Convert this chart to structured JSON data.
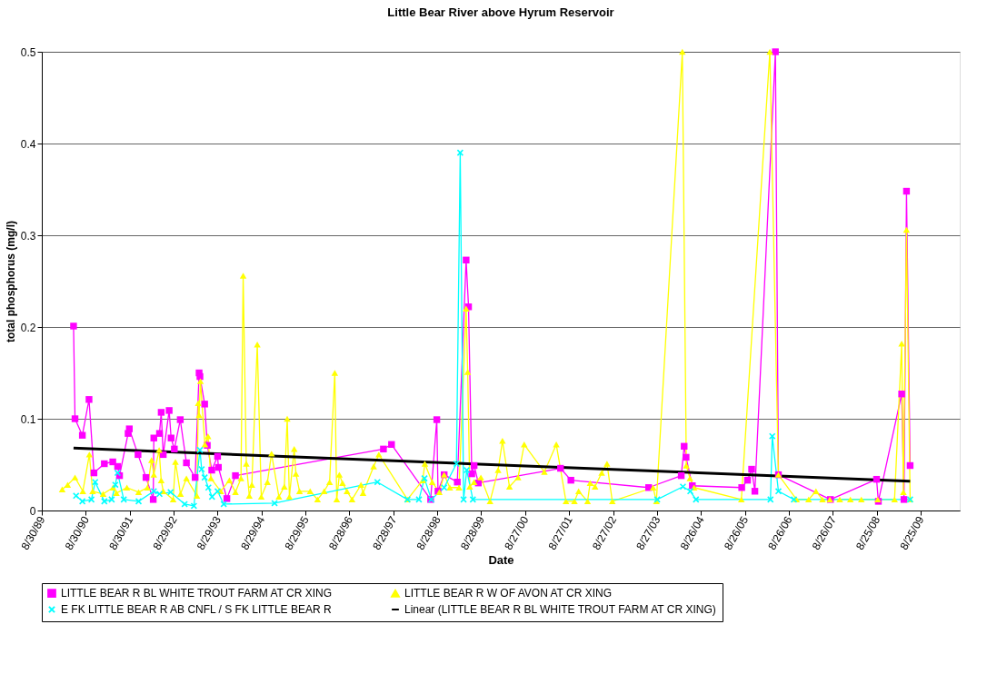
{
  "chart_data": {
    "type": "line",
    "title": "Little Bear River above Hyrum Reservoir",
    "xlabel": "Date",
    "ylabel": "total phosphorus (mg/l)",
    "xlim": [
      "1989-08-30",
      "2010-06-25"
    ],
    "xticks": [
      {
        "value": "1989-08-30",
        "label": "8/30/89"
      },
      {
        "value": "1990-08-29",
        "label": "8/30/90"
      },
      {
        "value": "1991-08-28",
        "label": "8/30/91"
      },
      {
        "value": "1992-08-26",
        "label": "8/29/92"
      },
      {
        "value": "1993-08-25",
        "label": "8/29/93"
      },
      {
        "value": "1994-08-24",
        "label": "8/29/94"
      },
      {
        "value": "1995-08-23",
        "label": "8/29/95"
      },
      {
        "value": "1996-08-21",
        "label": "8/28/96"
      },
      {
        "value": "1997-08-20",
        "label": "8/28/97"
      },
      {
        "value": "1998-08-19",
        "label": "8/28/98"
      },
      {
        "value": "1999-08-18",
        "label": "8/28/99"
      },
      {
        "value": "2000-08-16",
        "label": "8/27/00"
      },
      {
        "value": "2001-08-15",
        "label": "8/27/01"
      },
      {
        "value": "2002-08-14",
        "label": "8/27/02"
      },
      {
        "value": "2003-08-13",
        "label": "8/27/03"
      },
      {
        "value": "2004-08-11",
        "label": "8/26/04"
      },
      {
        "value": "2005-08-10",
        "label": "8/26/05"
      },
      {
        "value": "2006-08-09",
        "label": "8/26/06"
      },
      {
        "value": "2007-08-08",
        "label": "8/26/07"
      },
      {
        "value": "2008-08-06",
        "label": "8/25/08"
      },
      {
        "value": "2009-08-05",
        "label": "8/25/09"
      }
    ],
    "ylim": [
      0,
      0.5
    ],
    "yticks": [
      0,
      0.1,
      0.2,
      0.3,
      0.4,
      0.5
    ],
    "grid": "y",
    "legend": "bottom",
    "series": [
      {
        "name": "LITTLE BEAR R BL WHITE TROUT FARM AT CR XING",
        "color": "#ff00ff",
        "marker": "square",
        "x": [
          "1990-05-20",
          "1990-06-01",
          "1990-08-01",
          "1990-09-25",
          "1990-11-05",
          "1991-01-30",
          "1991-04-10",
          "1991-05-20",
          "1991-06-05",
          "1991-08-15",
          "1991-08-25",
          "1991-11-05",
          "1992-01-10",
          "1992-03-10",
          "1992-03-15",
          "1992-05-01",
          "1992-05-15",
          "1992-06-01",
          "1992-07-20",
          "1992-08-05",
          "1992-09-01",
          "1992-10-20",
          "1992-12-10",
          "1993-02-20",
          "1993-03-25",
          "1993-04-01",
          "1993-05-10",
          "1993-06-01",
          "1993-07-08",
          "1993-08-25",
          "1993-09-01",
          "1993-11-10",
          "1994-01-20",
          "1997-05-30",
          "1997-08-05",
          "1998-06-25",
          "1998-08-15",
          "1998-08-25",
          "1998-10-15",
          "1999-02-01",
          "1999-04-15",
          "1999-05-05",
          "1999-06-01",
          "1999-06-20",
          "1999-07-25",
          "2001-06-05",
          "2001-08-30",
          "2003-06-05",
          "2004-03-01",
          "2004-03-25",
          "2004-04-10",
          "2004-06-01",
          "2005-07-15",
          "2005-09-01",
          "2005-10-05",
          "2005-11-01",
          "2006-04-20",
          "2006-05-15",
          "2007-07-20",
          "2008-08-05",
          "2008-08-20",
          "2009-03-01",
          "2009-03-20",
          "2009-04-10",
          "2009-05-10"
        ],
        "values": [
          0.201,
          0.1,
          0.082,
          0.121,
          0.041,
          0.051,
          0.053,
          0.048,
          0.038,
          0.084,
          0.089,
          0.061,
          0.036,
          0.012,
          0.079,
          0.084,
          0.107,
          0.061,
          0.109,
          0.079,
          0.067,
          0.099,
          0.052,
          0.036,
          0.15,
          0.146,
          0.116,
          0.071,
          0.044,
          0.059,
          0.047,
          0.013,
          0.038,
          0.067,
          0.072,
          0.012,
          0.099,
          0.021,
          0.039,
          0.031,
          0.273,
          0.222,
          0.04,
          0.049,
          0.03,
          0.046,
          0.033,
          0.025,
          0.038,
          0.07,
          0.058,
          0.027,
          0.025,
          0.033,
          0.045,
          0.021,
          0.5,
          0.039,
          0.012,
          0.034,
          0.01,
          0.127,
          0.012,
          0.348,
          0.049
        ]
      },
      {
        "name": "LITTLE BEAR R W OF AVON AT CR XING",
        "color": "#ffff00",
        "marker": "triangle",
        "x": [
          "1990-02-15",
          "1990-04-01",
          "1990-06-01",
          "1990-08-05",
          "1990-09-28",
          "1990-10-25",
          "1991-01-20",
          "1991-04-12",
          "1991-05-10",
          "1991-08-05",
          "1991-11-10",
          "1992-01-22",
          "1992-02-25",
          "1992-03-15",
          "1992-04-28",
          "1992-05-15",
          "1992-06-01",
          "1992-08-22",
          "1992-09-10",
          "1992-10-22",
          "1992-12-10",
          "1993-03-07",
          "1993-03-18",
          "1993-03-25",
          "1993-04-05",
          "1993-05-12",
          "1993-06-07",
          "1993-07-01",
          "1993-09-20",
          "1993-12-01",
          "1994-01-20",
          "1994-03-07",
          "1994-03-25",
          "1994-04-20",
          "1994-05-15",
          "1994-06-05",
          "1994-07-20",
          "1994-08-22",
          "1994-10-12",
          "1994-11-15",
          "1995-01-15",
          "1995-03-01",
          "1995-03-25",
          "1995-04-12",
          "1995-05-22",
          "1995-06-05",
          "1995-07-05",
          "1995-10-01",
          "1995-12-01",
          "1996-01-25",
          "1996-03-10",
          "1996-04-22",
          "1996-05-08",
          "1996-05-30",
          "1996-06-25",
          "1996-08-01",
          "1996-09-12",
          "1996-11-25",
          "1996-12-12",
          "1997-03-10",
          "1997-04-22",
          "1997-12-15",
          "1998-04-20",
          "1998-05-08",
          "1998-07-08",
          "1998-09-05",
          "1998-10-15",
          "1998-12-01",
          "1999-02-15",
          "1999-04-15",
          "1999-04-28",
          "1999-05-15",
          "1999-06-20",
          "1999-08-15",
          "1999-10-30",
          "2000-01-05",
          "2000-02-10",
          "2000-04-08",
          "2000-06-18",
          "2000-08-08",
          "2001-01-22",
          "2001-05-01",
          "2001-07-20",
          "2001-09-28",
          "2001-11-02",
          "2002-01-15",
          "2002-02-05",
          "2002-03-18",
          "2002-05-12",
          "2002-06-25",
          "2002-08-08",
          "2003-07-12",
          "2003-08-08",
          "2004-03-10",
          "2004-04-12",
          "2004-05-12",
          "2004-06-15",
          "2005-07-12",
          "2006-03-05",
          "2006-05-15",
          "2006-10-12",
          "2007-01-20",
          "2007-03-22",
          "2007-05-15",
          "2007-07-15",
          "2007-10-05",
          "2008-01-01",
          "2008-04-01",
          "2008-08-15",
          "2009-01-01",
          "2009-03-01",
          "2009-03-15",
          "2009-04-10",
          "2009-05-10"
        ],
        "values": [
          0.023,
          0.028,
          0.036,
          0.021,
          0.061,
          0.021,
          0.018,
          0.025,
          0.019,
          0.025,
          0.02,
          0.025,
          0.055,
          0.039,
          0.066,
          0.033,
          0.021,
          0.012,
          0.053,
          0.018,
          0.035,
          0.016,
          0.117,
          0.104,
          0.141,
          0.072,
          0.081,
          0.035,
          0.021,
          0.033,
          0.02,
          0.035,
          0.256,
          0.051,
          0.016,
          0.028,
          0.181,
          0.015,
          0.031,
          0.062,
          0.015,
          0.026,
          0.1,
          0.015,
          0.067,
          0.04,
          0.021,
          0.021,
          0.012,
          0.021,
          0.031,
          0.15,
          0.012,
          0.039,
          0.03,
          0.021,
          0.012,
          0.028,
          0.019,
          0.048,
          0.061,
          0.012,
          0.033,
          0.051,
          0.031,
          0.02,
          0.039,
          0.025,
          0.025,
          0.22,
          0.151,
          0.026,
          0.031,
          0.036,
          0.01,
          0.044,
          0.076,
          0.026,
          0.036,
          0.072,
          0.042,
          0.072,
          0.01,
          0.01,
          0.021,
          0.01,
          0.03,
          0.026,
          0.041,
          0.051,
          0.01,
          0.025,
          0.01,
          0.5,
          0.049,
          0.035,
          0.025,
          0.012,
          0.5,
          0.039,
          0.012,
          0.012,
          0.021,
          0.012,
          0.012,
          0.012,
          0.012,
          0.012,
          0.012,
          0.012,
          0.182,
          0.02,
          0.306,
          0.012
        ]
      },
      {
        "name": "E FK LITTLE BEAR R AB CNFL / S FK LITTLE BEAR R",
        "color": "#00ffff",
        "marker": "cross",
        "x": [
          "1990-06-10",
          "1990-08-01",
          "1990-10-15",
          "1990-11-15",
          "1991-01-30",
          "1991-04-01",
          "1991-05-01",
          "1991-05-20",
          "1991-07-10",
          "1991-11-10",
          "1992-03-15",
          "1992-05-01",
          "1992-08-01",
          "1992-11-25",
          "1993-02-10",
          "1993-04-01",
          "1993-04-15",
          "1993-05-10",
          "1993-06-10",
          "1993-07-10",
          "1993-08-25",
          "1993-10-15",
          "1994-12-10",
          "1997-04-10",
          "1997-12-15",
          "1998-03-20",
          "1998-05-05",
          "1998-07-01",
          "1998-10-15",
          "1999-01-25",
          "1999-02-25",
          "1999-03-25",
          "1999-04-20",
          "1999-06-10",
          "2003-08-15",
          "2004-03-15",
          "2004-05-15",
          "2004-07-01",
          "2006-03-10",
          "2006-03-25",
          "2006-05-15",
          "2006-09-20",
          "2009-05-10"
        ],
        "values": [
          0.016,
          0.01,
          0.012,
          0.031,
          0.01,
          0.012,
          0.028,
          0.041,
          0.012,
          0.01,
          0.021,
          0.018,
          0.02,
          0.007,
          0.005,
          0.066,
          0.045,
          0.036,
          0.025,
          0.015,
          0.021,
          0.007,
          0.008,
          0.031,
          0.012,
          0.012,
          0.035,
          0.012,
          0.025,
          0.051,
          0.39,
          0.012,
          0.044,
          0.012,
          0.012,
          0.026,
          0.021,
          0.012,
          0.012,
          0.081,
          0.021,
          0.012,
          0.012
        ]
      },
      {
        "name": "Linear (LITTLE BEAR R BL WHITE TROUT FARM AT CR XING)",
        "color": "#000000",
        "marker": "none",
        "x": [
          "1990-05-20",
          "2009-05-10"
        ],
        "values": [
          0.068,
          0.032
        ]
      }
    ]
  }
}
